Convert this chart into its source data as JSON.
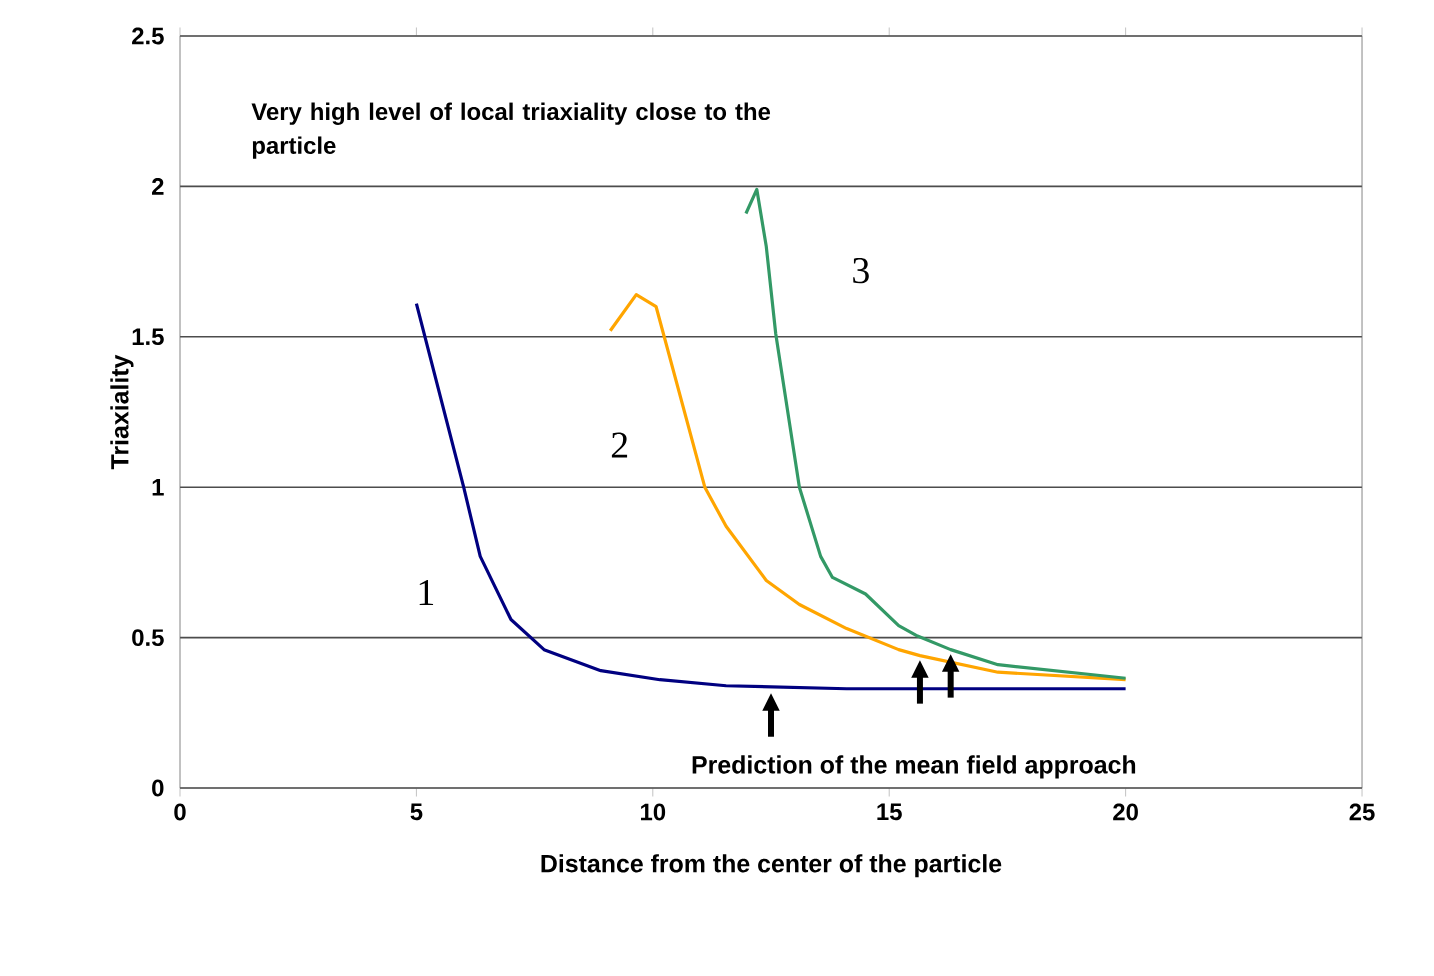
{
  "chart_data": {
    "type": "line",
    "xlabel": "Distance from the center of the particle",
    "ylabel": "Triaxiality",
    "xlim": [
      0,
      25
    ],
    "xticks": [
      0,
      5,
      10,
      15,
      20,
      25
    ],
    "ylim": [
      0,
      2.5
    ],
    "yticks": [
      0,
      0.5,
      1,
      1.5,
      2,
      2.5
    ],
    "grid": "y",
    "legend": false,
    "series": [
      {
        "name": "1",
        "color": "#000080",
        "x": [
          5,
          6,
          6.35,
          7,
          7.7,
          8.9,
          10.15,
          11.55,
          14.1,
          20
        ],
        "values": [
          1.61,
          1.0,
          0.77,
          0.56,
          0.46,
          0.39,
          0.36,
          0.34,
          0.33,
          0.33
        ]
      },
      {
        "name": "2",
        "color": "#ffa500",
        "x": [
          9.1,
          9.65,
          10.07,
          11.1,
          11.55,
          12.4,
          13.1,
          14.1,
          15.2,
          15.65,
          17.3,
          20
        ],
        "values": [
          1.52,
          1.64,
          1.6,
          1.0,
          0.87,
          0.69,
          0.61,
          0.53,
          0.46,
          0.44,
          0.385,
          0.36
        ]
      },
      {
        "name": "3",
        "color": "#339966",
        "x": [
          11.97,
          12.2,
          12.4,
          12.6,
          13.1,
          13.55,
          13.8,
          14.5,
          15.2,
          15.6,
          16.3,
          17.3,
          20
        ],
        "values": [
          1.91,
          1.99,
          1.8,
          1.51,
          1.0,
          0.77,
          0.7,
          0.645,
          0.54,
          0.505,
          0.46,
          0.41,
          0.365
        ]
      }
    ],
    "annotations": [
      "Very high level of local triaxiality close to the particle",
      {
        "text": "Prediction of the mean field approach",
        "x": 12.5,
        "y": 0.33
      }
    ]
  }
}
